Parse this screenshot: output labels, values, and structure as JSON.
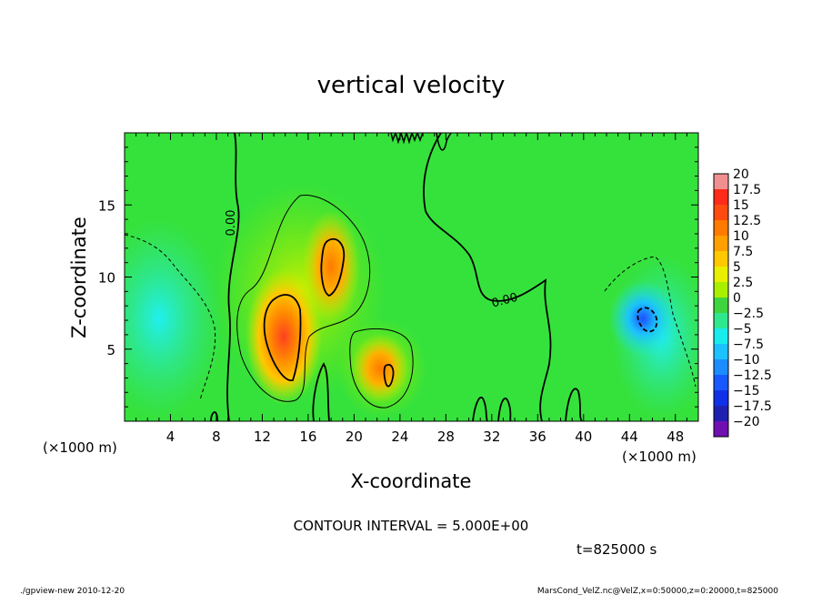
{
  "chart_data": {
    "type": "heatmap",
    "title": "vertical velocity",
    "xlabel": "X-coordinate",
    "ylabel": "Z-coordinate",
    "x_unit_label": "(×1000 m)",
    "y_unit_label": "(×1000 m)",
    "xlim": [
      0,
      50
    ],
    "ylim": [
      0,
      20
    ],
    "x_ticks": [
      "4",
      "8",
      "12",
      "16",
      "20",
      "24",
      "28",
      "32",
      "36",
      "40",
      "44",
      "48"
    ],
    "y_ticks": [
      "5",
      "10",
      "15"
    ],
    "colorbar_labels": [
      "20",
      "17.5",
      "15",
      "12.5",
      "10",
      "7.5",
      "5",
      "2.5",
      "0",
      "-2.5",
      "-5",
      "-7.5",
      "-10",
      "-12.5",
      "-15",
      "-17.5",
      "-20"
    ],
    "colorbar_colors": [
      "#f08f8f",
      "#ff2a1a",
      "#ff4a10",
      "#ff7a00",
      "#ffa000",
      "#ffc800",
      "#e8ef00",
      "#a8f000",
      "#3fd53f",
      "#2ee88e",
      "#18ecec",
      "#1cc2ff",
      "#1c8cff",
      "#1858ff",
      "#1030e8",
      "#2020b0",
      "#7010b0"
    ],
    "contour_interval": "CONTOUR INTERVAL = 5.000E+00",
    "contour_labels": [
      "0.00",
      "0.00"
    ],
    "time": "t=825000 s",
    "footer_left": "./gpview-new  2010-12-20",
    "footer_right": "MarsCond_VelZ.nc@VelZ,x=0:50000,z=0:20000,t=825000",
    "features": [
      {
        "x": 14,
        "z": 7,
        "value": 15
      },
      {
        "x": 18,
        "z": 11,
        "value": 12
      },
      {
        "x": 22.5,
        "z": 4,
        "value": 10
      },
      {
        "x": 45,
        "z": 7,
        "value": -10
      },
      {
        "x": 4,
        "z": 5,
        "value": -5
      },
      {
        "x": 47,
        "z": 6,
        "value": -5
      }
    ]
  }
}
